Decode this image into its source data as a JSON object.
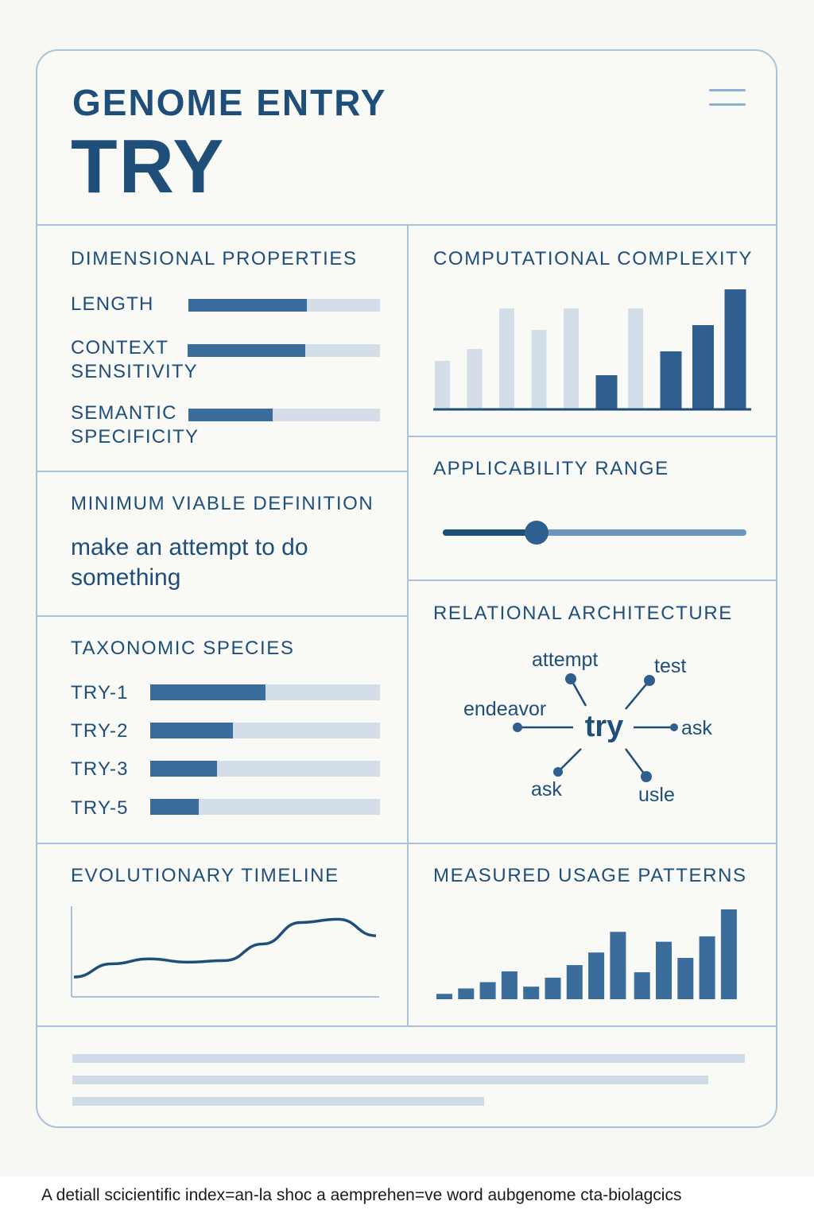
{
  "header": {
    "eyebrow": "GENOME ENTRY",
    "title": "TRY"
  },
  "dimensional": {
    "title": "DIMENSIONAL PROPERTIES",
    "items": [
      {
        "label": "LENGTH",
        "value": 0.62
      },
      {
        "label": "CONTEXT\nSENSITIVITY",
        "value": 0.61
      },
      {
        "label": "SEMANTIC\nSPECIFICITY",
        "value": 0.44
      }
    ]
  },
  "definition": {
    "title": "MINIMUM VIABLE DEFINITION",
    "text": "make an attempt to do something"
  },
  "taxonomy": {
    "title": "TAXONOMIC SPECIES",
    "items": [
      {
        "label": "TRY-1",
        "value": 0.5
      },
      {
        "label": "TRY-2",
        "value": 0.36
      },
      {
        "label": "TRY-3",
        "value": 0.29
      },
      {
        "label": "TRY-5",
        "value": 0.21
      }
    ]
  },
  "complexity": {
    "title": "COMPUTATIONAL COMPLEXITY",
    "chart_data": {
      "type": "bar",
      "values": [
        0.4,
        0.5,
        0.84,
        0.66,
        0.84,
        0.28,
        0.84,
        0.48,
        0.7,
        1.0
      ],
      "highlight": [
        false,
        false,
        false,
        false,
        false,
        true,
        false,
        true,
        true,
        true
      ],
      "ylim": [
        0,
        1
      ]
    }
  },
  "applicability": {
    "title": "APPLICABILITY RANGE",
    "value": 0.31
  },
  "relational": {
    "title": "RELATIONAL ARCHITECTURE",
    "center": "try",
    "nodes": [
      "attempt",
      "test",
      "endeavor",
      "ask",
      "ask",
      "usle"
    ]
  },
  "timeline": {
    "title": "EVOLUTIONARY TIMELINE",
    "chart_data": {
      "type": "line",
      "x": [
        0,
        1,
        2,
        3,
        4,
        5,
        6,
        7,
        8
      ],
      "values": [
        0.22,
        0.38,
        0.44,
        0.4,
        0.42,
        0.62,
        0.88,
        0.92,
        0.72
      ],
      "ylim": [
        0,
        1
      ]
    }
  },
  "usage": {
    "title": "MEASURED USAGE PATTERNS",
    "chart_data": {
      "type": "bar",
      "values": [
        0.06,
        0.12,
        0.19,
        0.31,
        0.14,
        0.24,
        0.38,
        0.52,
        0.75,
        0.3,
        0.64,
        0.46,
        0.7,
        1.0
      ],
      "ylim": [
        0,
        1
      ]
    }
  },
  "caption": "A detiall scicientific index=an-la shoc a aemprehen=ve word aubgenome cta-biolagcics",
  "colors": {
    "primary": "#1f4e79",
    "bar": "#3a6d9c",
    "track": "#d3dee8",
    "border": "#a9c2d9"
  }
}
